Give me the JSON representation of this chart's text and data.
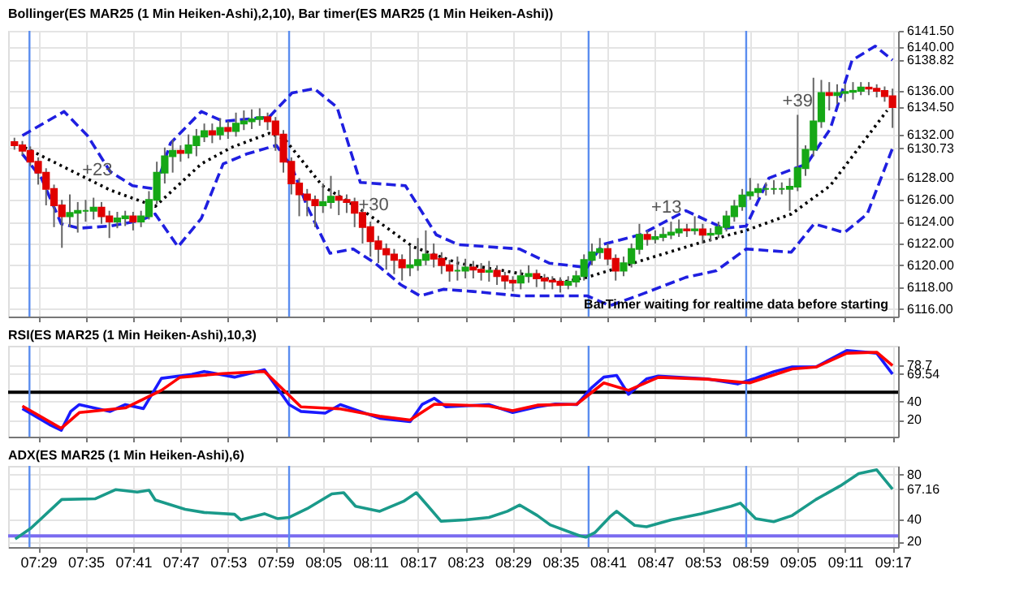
{
  "chart_data": [
    {
      "type": "candlestick",
      "title": "Bollinger(ES MAR25 (1 Min Heiken-Ashi),2,10), Bar timer(ES MAR25 (1 Min Heiken-Ashi))",
      "grid": true,
      "tick_labels": "y",
      "xlim": [
        7.42,
        9.295
      ],
      "xticks": [
        {
          "value": 7.4833,
          "label": null
        },
        {
          "value": 7.5833,
          "label": null
        },
        {
          "value": 7.6833,
          "label": null
        },
        {
          "value": 7.7833,
          "label": null
        },
        {
          "value": 7.8833,
          "label": null
        },
        {
          "value": 7.9833,
          "label": null
        },
        {
          "value": 8.0833,
          "label": null
        },
        {
          "value": 8.1833,
          "label": null
        },
        {
          "value": 8.2833,
          "label": null
        },
        {
          "value": 8.3833,
          "label": null
        },
        {
          "value": 8.4833,
          "label": null
        },
        {
          "value": 8.5833,
          "label": null
        },
        {
          "value": 8.6833,
          "label": null
        },
        {
          "value": 8.7833,
          "label": null
        },
        {
          "value": 8.8833,
          "label": null
        },
        {
          "value": 8.9833,
          "label": null
        },
        {
          "value": 9.0833,
          "label": null
        },
        {
          "value": 9.1833,
          "label": null
        },
        {
          "value": 9.2833,
          "label": null
        }
      ],
      "ylim": [
        6115.3,
        6141.5
      ],
      "yticks": [
        {
          "value": 6116,
          "label": "6116.00"
        },
        {
          "value": 6118,
          "label": "6118.00"
        },
        {
          "value": 6120,
          "label": "6120.00"
        },
        {
          "value": 6122,
          "label": "6122.00"
        },
        {
          "value": 6124,
          "label": "6124.00"
        },
        {
          "value": 6126,
          "label": "6126.00"
        },
        {
          "value": 6128,
          "label": "6128.00"
        },
        {
          "value": 6130.73,
          "label": "6130.73"
        },
        {
          "value": 6132,
          "label": "6132.00"
        },
        {
          "value": 6134.5,
          "label": "6134.50"
        },
        {
          "value": 6136,
          "label": "6136.00"
        },
        {
          "value": 6138.82,
          "label": "6138.82"
        },
        {
          "value": 6140,
          "label": "6140.00"
        },
        {
          "value": 6141.5,
          "label": "6141.50"
        }
      ],
      "x": [
        7.4333,
        7.45,
        7.4667,
        7.4833,
        7.5,
        7.5167,
        7.5333,
        7.55,
        7.5667,
        7.5833,
        7.6,
        7.6167,
        7.6333,
        7.65,
        7.6667,
        7.6833,
        7.7,
        7.7167,
        7.7333,
        7.75,
        7.7667,
        7.7833,
        7.8,
        7.8167,
        7.8333,
        7.85,
        7.8667,
        7.8833,
        7.9,
        7.9167,
        7.9333,
        7.95,
        7.9667,
        7.9833,
        8.0,
        8.0167,
        8.0333,
        8.05,
        8.0667,
        8.0833,
        8.1,
        8.1167,
        8.1333,
        8.15,
        8.1667,
        8.1833,
        8.2,
        8.2167,
        8.2333,
        8.25,
        8.2667,
        8.2833,
        8.3,
        8.3167,
        8.3333,
        8.35,
        8.3667,
        8.3833,
        8.4,
        8.4167,
        8.4333,
        8.45,
        8.4667,
        8.4833,
        8.5,
        8.5167,
        8.5333,
        8.55,
        8.5667,
        8.5833,
        8.6,
        8.6167,
        8.6333,
        8.65,
        8.6667,
        8.6833,
        8.7,
        8.7167,
        8.7333,
        8.75,
        8.7667,
        8.7833,
        8.8,
        8.8167,
        8.8333,
        8.85,
        8.8667,
        8.8833,
        8.9,
        8.9167,
        8.9333,
        8.95,
        8.9667,
        8.9833,
        9.0,
        9.0167,
        9.0333,
        9.05,
        9.0667,
        9.0833,
        9.1,
        9.1167,
        9.1333,
        9.15,
        9.1667,
        9.1833,
        9.2,
        9.2167,
        9.2333,
        9.25,
        9.2667,
        9.2833
      ],
      "ohlc": [
        [
          6131.3,
          6131.7,
          6130.6,
          6131.0
        ],
        [
          6131.0,
          6131.4,
          6130.1,
          6130.5
        ],
        [
          6130.5,
          6130.9,
          6129.1,
          6129.5
        ],
        [
          6129.5,
          6129.9,
          6127.4,
          6128.5
        ],
        [
          6128.5,
          6128.9,
          6125.5,
          6127.0
        ],
        [
          6127.0,
          6127.4,
          6123.5,
          6125.5
        ],
        [
          6125.5,
          6126.0,
          6121.6,
          6124.5
        ],
        [
          6124.5,
          6126.5,
          6123.5,
          6124.8
        ],
        [
          6124.8,
          6125.8,
          6123.0,
          6125.0
        ],
        [
          6125.0,
          6126.0,
          6124.0,
          6125.0
        ],
        [
          6125.0,
          6126.2,
          6124.2,
          6125.3
        ],
        [
          6125.3,
          6125.8,
          6123.8,
          6124.5
        ],
        [
          6124.5,
          6125.0,
          6122.5,
          6124.0
        ],
        [
          6124.0,
          6124.9,
          6123.4,
          6124.3
        ],
        [
          6124.3,
          6125.0,
          6123.6,
          6124.5
        ],
        [
          6124.5,
          6124.9,
          6123.2,
          6124.0
        ],
        [
          6124.0,
          6125.0,
          6123.5,
          6124.5
        ],
        [
          6124.5,
          6126.8,
          6124.2,
          6126.0
        ],
        [
          6126.0,
          6129.5,
          6125.6,
          6128.5
        ],
        [
          6128.5,
          6130.8,
          6127.5,
          6130.0
        ],
        [
          6130.0,
          6131.5,
          6128.5,
          6130.5
        ],
        [
          6130.5,
          6131.0,
          6129.5,
          6130.3
        ],
        [
          6130.3,
          6132.0,
          6129.8,
          6131.0
        ],
        [
          6131.0,
          6132.5,
          6130.0,
          6131.8
        ],
        [
          6131.8,
          6133.0,
          6131.3,
          6132.3
        ],
        [
          6132.3,
          6133.0,
          6131.2,
          6132.0
        ],
        [
          6132.0,
          6133.5,
          6131.5,
          6132.6
        ],
        [
          6132.6,
          6133.2,
          6131.6,
          6132.3
        ],
        [
          6132.3,
          6134.0,
          6131.8,
          6133.0
        ],
        [
          6133.0,
          6134.2,
          6132.4,
          6133.2
        ],
        [
          6133.2,
          6134.3,
          6132.5,
          6133.4
        ],
        [
          6133.4,
          6134.4,
          6132.8,
          6133.6
        ],
        [
          6133.6,
          6134.0,
          6132.4,
          6133.2
        ],
        [
          6133.2,
          6133.6,
          6130.5,
          6132.0
        ],
        [
          6132.0,
          6132.4,
          6128.5,
          6129.5
        ],
        [
          6129.5,
          6129.9,
          6126.5,
          6127.5
        ],
        [
          6127.5,
          6128.0,
          6124.5,
          6126.5
        ],
        [
          6126.5,
          6127.0,
          6124.5,
          6126.0
        ],
        [
          6126.0,
          6126.4,
          6123.5,
          6125.5
        ],
        [
          6125.5,
          6127.5,
          6124.8,
          6125.8
        ],
        [
          6125.8,
          6128.2,
          6125.2,
          6126.3
        ],
        [
          6126.3,
          6126.9,
          6124.6,
          6126.0
        ],
        [
          6126.0,
          6126.5,
          6124.8,
          6125.8
        ],
        [
          6125.8,
          6126.2,
          6123.5,
          6124.8
        ],
        [
          6124.8,
          6125.2,
          6122.0,
          6123.5
        ],
        [
          6123.5,
          6124.0,
          6120.8,
          6122.2
        ],
        [
          6122.2,
          6122.7,
          6120.2,
          6121.5
        ],
        [
          6121.5,
          6122.0,
          6119.6,
          6121.0
        ],
        [
          6121.0,
          6121.5,
          6119.2,
          6120.5
        ],
        [
          6120.5,
          6121.0,
          6118.6,
          6119.8
        ],
        [
          6119.8,
          6121.8,
          6119.0,
          6120.0
        ],
        [
          6120.0,
          6122.5,
          6119.5,
          6120.5
        ],
        [
          6120.5,
          6123.2,
          6120.0,
          6121.0
        ],
        [
          6121.0,
          6122.0,
          6119.8,
          6120.6
        ],
        [
          6120.6,
          6121.2,
          6119.2,
          6120.0
        ],
        [
          6120.0,
          6120.5,
          6118.5,
          6119.5
        ],
        [
          6119.5,
          6120.8,
          6118.6,
          6119.5
        ],
        [
          6119.5,
          6120.6,
          6118.8,
          6119.8
        ],
        [
          6119.8,
          6120.4,
          6118.8,
          6119.6
        ],
        [
          6119.6,
          6120.2,
          6118.6,
          6119.4
        ],
        [
          6119.4,
          6120.4,
          6118.5,
          6119.5
        ],
        [
          6119.5,
          6120.0,
          6118.2,
          6119.0
        ],
        [
          6119.0,
          6119.4,
          6117.8,
          6118.6
        ],
        [
          6118.6,
          6119.0,
          6117.6,
          6118.4
        ],
        [
          6118.4,
          6119.6,
          6117.8,
          6119.0
        ],
        [
          6119.0,
          6120.0,
          6118.4,
          6119.2
        ],
        [
          6119.2,
          6119.6,
          6118.0,
          6118.8
        ],
        [
          6118.8,
          6119.2,
          6117.8,
          6118.6
        ],
        [
          6118.6,
          6119.0,
          6117.8,
          6118.5
        ],
        [
          6118.5,
          6118.9,
          6117.5,
          6118.2
        ],
        [
          6118.2,
          6119.0,
          6117.8,
          6118.5
        ],
        [
          6118.5,
          6119.5,
          6118.0,
          6119.0
        ],
        [
          6119.0,
          6121.0,
          6118.6,
          6120.5
        ],
        [
          6120.5,
          6122.0,
          6120.0,
          6121.2
        ],
        [
          6121.2,
          6122.5,
          6120.6,
          6121.5
        ],
        [
          6121.5,
          6122.0,
          6120.0,
          6120.6
        ],
        [
          6120.6,
          6121.0,
          6118.6,
          6119.5
        ],
        [
          6119.5,
          6120.8,
          6119.0,
          6120.2
        ],
        [
          6120.2,
          6122.0,
          6119.8,
          6121.5
        ],
        [
          6121.5,
          6123.8,
          6121.0,
          6122.8
        ],
        [
          6122.8,
          6123.2,
          6121.8,
          6122.4
        ],
        [
          6122.4,
          6123.2,
          6122.0,
          6122.6
        ],
        [
          6122.6,
          6123.5,
          6122.2,
          6122.8
        ],
        [
          6122.8,
          6124.0,
          6122.4,
          6123.0
        ],
        [
          6123.0,
          6124.2,
          6122.6,
          6123.3
        ],
        [
          6123.3,
          6123.8,
          6122.6,
          6123.2
        ],
        [
          6123.2,
          6124.5,
          6122.8,
          6123.3
        ],
        [
          6123.3,
          6123.8,
          6122.0,
          6122.8
        ],
        [
          6122.8,
          6123.4,
          6122.2,
          6122.9
        ],
        [
          6122.9,
          6124.0,
          6122.5,
          6123.5
        ],
        [
          6123.5,
          6125.0,
          6123.1,
          6124.5
        ],
        [
          6124.5,
          6126.0,
          6124.0,
          6125.4
        ],
        [
          6125.4,
          6127.0,
          6125.0,
          6126.4
        ],
        [
          6126.4,
          6128.0,
          6126.0,
          6126.7
        ],
        [
          6126.7,
          6127.5,
          6126.2,
          6127.0
        ],
        [
          6127.0,
          6127.6,
          6126.4,
          6127.0
        ],
        [
          6127.0,
          6127.8,
          6126.5,
          6127.0
        ],
        [
          6127.0,
          6127.6,
          6126.5,
          6127.0
        ],
        [
          6127.0,
          6128.0,
          6125.0,
          6127.2
        ],
        [
          6127.2,
          6133.8,
          6126.8,
          6128.9
        ],
        [
          6128.9,
          6131.0,
          6128.2,
          6130.6
        ],
        [
          6130.6,
          6137.2,
          6130.0,
          6133.2
        ],
        [
          6133.2,
          6137.0,
          6132.6,
          6135.8
        ],
        [
          6135.8,
          6136.8,
          6134.2,
          6135.6
        ],
        [
          6135.6,
          6136.6,
          6134.8,
          6135.8
        ],
        [
          6135.8,
          6136.6,
          6135.0,
          6135.9
        ],
        [
          6135.9,
          6136.8,
          6135.2,
          6136.0
        ],
        [
          6136.0,
          6136.8,
          6135.6,
          6136.3
        ],
        [
          6136.3,
          6136.8,
          6135.6,
          6136.2
        ],
        [
          6136.2,
          6136.6,
          6135.4,
          6136.0
        ],
        [
          6136.0,
          6136.4,
          6135.0,
          6135.5
        ],
        [
          6135.5,
          6136.2,
          6132.6,
          6134.5
        ]
      ],
      "series": [
        {
          "type": "line",
          "color": "#1f1fe0",
          "line_style": "dashed",
          "x": [
            7.45,
            7.538,
            7.587,
            7.635,
            7.682,
            7.73,
            7.762,
            7.827,
            7.873,
            7.97,
            8.018,
            8.065,
            8.113,
            8.162,
            8.257,
            8.322,
            8.368,
            8.497,
            8.56,
            8.64,
            8.672,
            8.752,
            8.848,
            8.928,
            8.975,
            9.023,
            9.103,
            9.152,
            9.198,
            9.247,
            9.2833
          ],
          "values": [
            6131.9,
            6134.1,
            6131.9,
            6128.6,
            6127.3,
            6127.0,
            6131.2,
            6134.1,
            6133.2,
            6133.6,
            6135.8,
            6136.2,
            6134.5,
            6127.6,
            6127.3,
            6122.8,
            6121.9,
            6121.5,
            6120.2,
            6119.8,
            6121.9,
            6122.8,
            6125.0,
            6123.4,
            6123.6,
            6128.0,
            6129.3,
            6132.5,
            6138.8,
            6140.1,
            6138.82
          ]
        },
        {
          "type": "line",
          "color": "#1f1fe0",
          "line_style": "dashed",
          "x": [
            7.45,
            7.49,
            7.532,
            7.57,
            7.635,
            7.698,
            7.73,
            7.778,
            7.827,
            7.873,
            7.922,
            7.985,
            8.018,
            8.05,
            8.098,
            8.147,
            8.193,
            8.248,
            8.288,
            8.337,
            8.4,
            8.497,
            8.64,
            8.688,
            8.752,
            8.848,
            8.912,
            8.975,
            9.07,
            9.118,
            9.182,
            9.23,
            9.2833
          ],
          "values": [
            6130.2,
            6128.0,
            6123.8,
            6123.4,
            6123.6,
            6124.1,
            6124.7,
            6121.7,
            6124.3,
            6129.3,
            6130.2,
            6131.0,
            6129.0,
            6125.4,
            6121.1,
            6121.5,
            6120.2,
            6118.2,
            6117.2,
            6117.8,
            6117.6,
            6117.2,
            6117.2,
            6116.3,
            6117.3,
            6118.9,
            6119.5,
            6121.5,
            6121.2,
            6123.8,
            6123.0,
            6124.7,
            6130.73
          ]
        },
        {
          "type": "line",
          "color": "#000000",
          "line_style": "dotted",
          "x": [
            7.455,
            7.538,
            7.635,
            7.73,
            7.827,
            7.89,
            7.97,
            8.002,
            8.082,
            8.178,
            8.273,
            8.368,
            8.465,
            8.592,
            8.64,
            8.752,
            8.88,
            8.975,
            9.07,
            9.152,
            9.272
          ],
          "values": [
            6130.8,
            6129.0,
            6126.9,
            6125.4,
            6129.3,
            6130.8,
            6132.1,
            6131.6,
            6127.3,
            6124.7,
            6121.7,
            6120.2,
            6119.5,
            6118.5,
            6118.9,
            6120.4,
            6122.1,
            6123.2,
            6124.7,
            6127.3,
            6134.2
          ]
        }
      ],
      "ref_lines": [
        {
          "axis": "x",
          "value": 7.465,
          "color": "#5b8def"
        },
        {
          "axis": "x",
          "value": 8.012,
          "color": "#5b8def"
        },
        {
          "axis": "x",
          "value": 8.643,
          "color": "#5b8def"
        },
        {
          "axis": "x",
          "value": 8.975,
          "color": "#5b8def"
        }
      ],
      "annotations": [
        {
          "text": "+23",
          "x": 7.608,
          "y": 6127.5
        },
        {
          "text": "+30",
          "x": 8.19,
          "y": 6124.3
        },
        {
          "text": "+13",
          "x": 8.807,
          "y": 6124.1
        },
        {
          "text": "+39",
          "x": 9.0833,
          "y": 6133.8
        },
        "BarTimer waiting for realtime data before starting"
      ]
    },
    {
      "type": "line",
      "title": "RSI(ES MAR25 (1 Min Heiken-Ashi),10,3)",
      "grid": true,
      "tick_labels": "y",
      "xlim": [
        7.42,
        9.295
      ],
      "xticks": [
        {
          "value": 7.4833,
          "label": null
        },
        {
          "value": 7.5833,
          "label": null
        },
        {
          "value": 7.6833,
          "label": null
        },
        {
          "value": 7.7833,
          "label": null
        },
        {
          "value": 7.8833,
          "label": null
        },
        {
          "value": 7.9833,
          "label": null
        },
        {
          "value": 8.0833,
          "label": null
        },
        {
          "value": 8.1833,
          "label": null
        },
        {
          "value": 8.2833,
          "label": null
        },
        {
          "value": 8.3833,
          "label": null
        },
        {
          "value": 8.4833,
          "label": null
        },
        {
          "value": 8.5833,
          "label": null
        },
        {
          "value": 8.6833,
          "label": null
        },
        {
          "value": 8.7833,
          "label": null
        },
        {
          "value": 8.8833,
          "label": null
        },
        {
          "value": 8.9833,
          "label": null
        },
        {
          "value": 9.0833,
          "label": null
        },
        {
          "value": 9.1833,
          "label": null
        },
        {
          "value": 9.2833,
          "label": null
        }
      ],
      "ylim": [
        2,
        100
      ],
      "yticks": [
        20,
        40,
        {
          "value": 69.54,
          "label": "69.54"
        },
        {
          "value": 78.7,
          "label": "78.7"
        }
      ],
      "series": [
        {
          "color": "#1a1aff",
          "x": [
            7.45,
            7.507,
            7.532,
            7.552,
            7.57,
            7.635,
            7.667,
            7.705,
            7.743,
            7.807,
            7.833,
            7.897,
            7.96,
            8.012,
            8.037,
            8.088,
            8.12,
            8.203,
            8.267,
            8.292,
            8.318,
            8.343,
            8.433,
            8.483,
            8.535,
            8.573,
            8.618,
            8.65,
            8.675,
            8.702,
            8.727,
            8.765,
            8.79,
            8.892,
            8.957,
            8.995,
            9.033,
            9.072,
            9.122,
            9.187,
            9.25,
            9.2833
          ],
          "values": [
            32.3,
            15.1,
            8.9,
            29.2,
            36.6,
            29.2,
            36.6,
            32.3,
            64.9,
            69.2,
            72.3,
            66.2,
            74.1,
            36.6,
            29.2,
            27.4,
            36.6,
            21.8,
            18.2,
            36.6,
            43.4,
            34.2,
            36.6,
            28.0,
            34.2,
            37.2,
            36.6,
            55.1,
            66.2,
            68.0,
            47.7,
            64.3,
            67.4,
            64.3,
            58.8,
            65.0,
            72.0,
            77.2,
            77.2,
            95.0,
            92.0,
            69.54
          ]
        },
        {
          "color": "#ff0000",
          "x": [
            7.45,
            7.532,
            7.57,
            7.667,
            7.743,
            7.782,
            7.872,
            7.96,
            8.037,
            8.12,
            8.203,
            8.267,
            8.318,
            8.433,
            8.483,
            8.535,
            8.618,
            8.675,
            8.727,
            8.79,
            8.892,
            8.982,
            9.072,
            9.122,
            9.187,
            9.25,
            9.2833
          ],
          "values": [
            35,
            11,
            28,
            33,
            52,
            66,
            70,
            72.3,
            34.2,
            32,
            24,
            20,
            37,
            35,
            30,
            36,
            37,
            60,
            52,
            66,
            64,
            60,
            75,
            77,
            92,
            93,
            78.7
          ]
        }
      ],
      "ref_lines": [
        {
          "axis": "y",
          "value": 50,
          "color": "#000000"
        },
        {
          "axis": "x",
          "value": 7.465,
          "color": "#5b8def"
        },
        {
          "axis": "x",
          "value": 8.012,
          "color": "#5b8def"
        },
        {
          "axis": "x",
          "value": 8.643,
          "color": "#5b8def"
        },
        {
          "axis": "x",
          "value": 8.975,
          "color": "#5b8def"
        }
      ]
    },
    {
      "type": "line",
      "title": "ADX(ES MAR25 (1 Min Heiken-Ashi),6)",
      "grid": true,
      "xlim": [
        7.42,
        9.295
      ],
      "xticks": [
        {
          "value": 7.4833,
          "label": "07:29"
        },
        {
          "value": 7.5833,
          "label": "07:35"
        },
        {
          "value": 7.6833,
          "label": "07:41"
        },
        {
          "value": 7.7833,
          "label": "07:47"
        },
        {
          "value": 7.8833,
          "label": "07:53"
        },
        {
          "value": 7.9833,
          "label": "07:59"
        },
        {
          "value": 8.0833,
          "label": "08:05"
        },
        {
          "value": 8.1833,
          "label": "08:11"
        },
        {
          "value": 8.2833,
          "label": "08:17"
        },
        {
          "value": 8.3833,
          "label": "08:23"
        },
        {
          "value": 8.4833,
          "label": "08:29"
        },
        {
          "value": 8.5833,
          "label": "08:35"
        },
        {
          "value": 8.6833,
          "label": "08:41"
        },
        {
          "value": 8.7833,
          "label": "08:47"
        },
        {
          "value": 8.8833,
          "label": "08:53"
        },
        {
          "value": 8.9833,
          "label": "08:59"
        },
        {
          "value": 9.0833,
          "label": "09:05"
        },
        {
          "value": 9.1833,
          "label": "09:11"
        },
        {
          "value": 9.2833,
          "label": "09:17"
        }
      ],
      "ylim": [
        15,
        88
      ],
      "yticks": [
        20,
        40,
        {
          "value": 67.16,
          "label": "67.16"
        },
        80
      ],
      "series": [
        {
          "color": "#1a9a8a",
          "x": [
            7.435,
            7.468,
            7.533,
            7.603,
            7.647,
            7.692,
            7.717,
            7.73,
            7.793,
            7.833,
            7.897,
            7.91,
            7.96,
            7.987,
            8.012,
            8.05,
            8.102,
            8.127,
            8.152,
            8.203,
            8.253,
            8.28,
            8.305,
            8.332,
            8.383,
            8.433,
            8.472,
            8.498,
            8.535,
            8.562,
            8.625,
            8.637,
            8.657,
            8.688,
            8.702,
            8.74,
            8.765,
            8.817,
            8.88,
            8.943,
            8.963,
            8.995,
            9.033,
            9.072,
            9.122,
            9.173,
            9.212,
            9.25,
            9.2833
          ],
          "values": [
            22.2,
            32,
            57.8,
            58.4,
            66.7,
            64.5,
            66.1,
            57.3,
            48.9,
            46.1,
            44.5,
            39.5,
            45,
            40.6,
            41.7,
            49.5,
            62.8,
            63.9,
            51.7,
            47.2,
            56.1,
            63.9,
            51.7,
            38.3,
            39.5,
            41.7,
            47.2,
            52.8,
            43.4,
            35,
            25,
            23.9,
            28.3,
            42.2,
            47.2,
            34.5,
            33.3,
            39.5,
            45,
            51.7,
            54.5,
            40.6,
            37.8,
            43.4,
            57.8,
            70,
            81,
            84.5,
            67.16
          ]
        }
      ],
      "ref_lines": [
        {
          "axis": "y",
          "value": 25,
          "color": "#7a6cf0"
        },
        {
          "axis": "x",
          "value": 7.465,
          "color": "#5b8def"
        },
        {
          "axis": "x",
          "value": 8.012,
          "color": "#5b8def"
        },
        {
          "axis": "x",
          "value": 8.643,
          "color": "#5b8def"
        },
        {
          "axis": "x",
          "value": 8.975,
          "color": "#5b8def"
        }
      ]
    }
  ]
}
